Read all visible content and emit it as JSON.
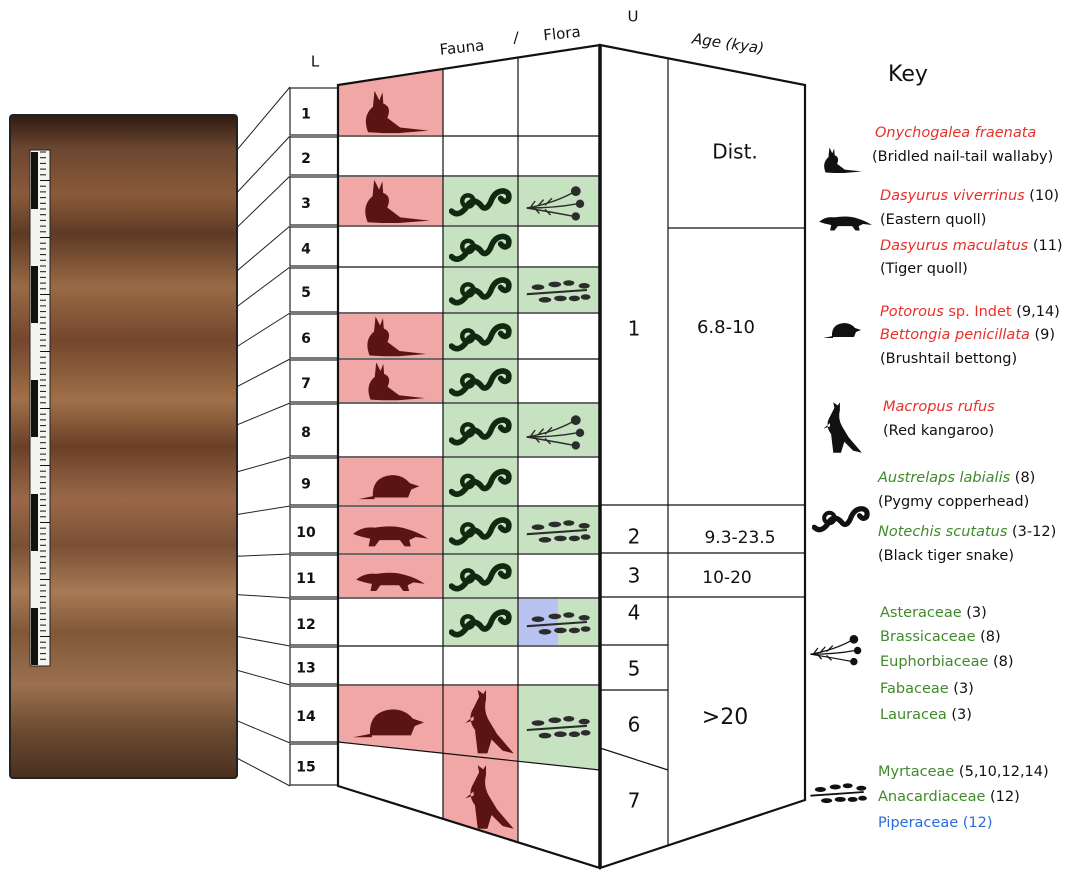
{
  "headers": {
    "layer": "L",
    "fauna": "Fauna",
    "slash": "/",
    "flora": "Flora",
    "unit": "U",
    "age": "Age (kya)"
  },
  "layers": [
    "1",
    "2",
    "3",
    "4",
    "5",
    "6",
    "7",
    "8",
    "9",
    "10",
    "11",
    "12",
    "13",
    "14",
    "15"
  ],
  "units": [
    "1",
    "2",
    "3",
    "4",
    "5",
    "6",
    "7"
  ],
  "ages": [
    "Dist.",
    "6.8-10",
    "9.3-23.5",
    "10-20",
    ">20"
  ],
  "key": {
    "title": "Key",
    "lines": [
      [
        {
          "text": "Onychogalea fraenata",
          "color": "#e8302a",
          "italic": true
        }
      ],
      [
        {
          "text": "(Bridled nail-tail wallaby)",
          "color": "#111111"
        }
      ],
      [
        {
          "text": "Dasyurus viverrinus",
          "color": "#e8302a",
          "italic": true
        },
        {
          "text": " (10)",
          "color": "#111111"
        }
      ],
      [
        {
          "text": "(Eastern quoll)",
          "color": "#111111"
        }
      ],
      [
        {
          "text": "Dasyurus maculatus",
          "color": "#e8302a",
          "italic": true
        },
        {
          "text": " (11)",
          "color": "#111111"
        }
      ],
      [
        {
          "text": "(Tiger quoll)",
          "color": "#111111"
        }
      ],
      [
        {
          "text": "Potorous",
          "color": "#e8302a",
          "italic": true
        },
        {
          "text": " sp. Indet",
          "color": "#e8302a"
        },
        {
          "text": " (9,14)",
          "color": "#111111"
        }
      ],
      [
        {
          "text": "Bettongia penicillata",
          "color": "#e8302a",
          "italic": true
        },
        {
          "text": " (9)",
          "color": "#111111"
        }
      ],
      [
        {
          "text": "(Brushtail bettong)",
          "color": "#111111"
        }
      ],
      [
        {
          "text": "Macropus rufus",
          "color": "#e8302a",
          "italic": true
        }
      ],
      [
        {
          "text": "(Red kangaroo)",
          "color": "#111111"
        }
      ],
      [
        {
          "text": "Austrelaps labialis",
          "color": "#3f8a2a",
          "italic": true
        },
        {
          "text": " (8)",
          "color": "#111111"
        }
      ],
      [
        {
          "text": "(Pygmy copperhead)",
          "color": "#111111"
        }
      ],
      [
        {
          "text": "Notechis scutatus",
          "color": "#3f8a2a",
          "italic": true
        },
        {
          "text": " (3-12)",
          "color": "#111111"
        }
      ],
      [
        {
          "text": "(Black tiger snake)",
          "color": "#111111"
        }
      ],
      [
        {
          "text": "Asteraceae",
          "color": "#3f8a2a"
        },
        {
          "text": " (3)",
          "color": "#111111"
        }
      ],
      [
        {
          "text": "Brassicaceae",
          "color": "#3f8a2a"
        },
        {
          "text": " (8)",
          "color": "#111111"
        }
      ],
      [
        {
          "text": "Euphorbiaceae",
          "color": "#3f8a2a"
        },
        {
          "text": " (8)",
          "color": "#111111"
        }
      ],
      [
        {
          "text": "Fabaceae",
          "color": "#3f8a2a"
        },
        {
          "text": " (3)",
          "color": "#111111"
        }
      ],
      [
        {
          "text": "Lauracea",
          "color": "#3f8a2a"
        },
        {
          "text": " (3)",
          "color": "#111111"
        }
      ],
      [
        {
          "text": "Myrtaceae",
          "color": "#3f8a2a"
        },
        {
          "text": " (5,10,12,14)",
          "color": "#111111"
        }
      ],
      [
        {
          "text": "Anacardiaceae",
          "color": "#3f8a2a"
        },
        {
          "text": " (12)",
          "color": "#111111"
        }
      ],
      [
        {
          "text": "Piperaceae",
          "color": "#2a6be0"
        },
        {
          "text": " (12)",
          "color": "#2a6be0"
        }
      ]
    ]
  }
}
